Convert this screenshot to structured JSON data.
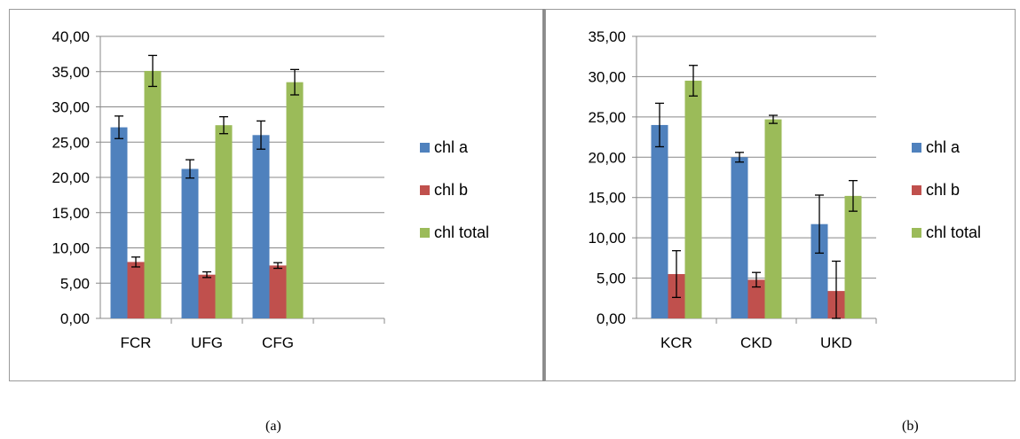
{
  "colors": {
    "chl_a": "#4f81bd",
    "chl_b": "#c0504d",
    "chl_total": "#9bbb59",
    "grid": "#888888",
    "axis": "#888888",
    "frame": "#9a9a9a"
  },
  "captions": {
    "a": "(a)",
    "b": "(b)"
  },
  "chart_data": [
    {
      "type": "bar",
      "panel": "a",
      "categories": [
        "FCR",
        "UFG",
        "CFG",
        ""
      ],
      "series": [
        {
          "name": "chl a",
          "values": [
            27.1,
            21.2,
            26.0,
            null
          ],
          "errors": [
            1.6,
            1.3,
            2.0,
            null
          ]
        },
        {
          "name": "chl b",
          "values": [
            8.0,
            6.2,
            7.5,
            null
          ],
          "errors": [
            0.7,
            0.4,
            0.4,
            null
          ]
        },
        {
          "name": "chl total",
          "values": [
            35.1,
            27.4,
            33.5,
            null
          ],
          "errors": [
            2.2,
            1.2,
            1.8,
            null
          ]
        }
      ],
      "ylim": [
        0,
        40
      ],
      "yticks": [
        "0,00",
        "5,00",
        "10,00",
        "15,00",
        "20,00",
        "25,00",
        "30,00",
        "35,00",
        "40,00"
      ],
      "grid": true,
      "legend": "right",
      "title": "",
      "xlabel": "",
      "ylabel": ""
    },
    {
      "type": "bar",
      "panel": "b",
      "categories": [
        "KCR",
        "CKD",
        "UKD"
      ],
      "series": [
        {
          "name": "chl a",
          "values": [
            24.0,
            20.0,
            11.7
          ],
          "errors": [
            2.7,
            0.6,
            3.6
          ]
        },
        {
          "name": "chl b",
          "values": [
            5.5,
            4.8,
            3.4
          ],
          "errors": [
            2.9,
            0.9,
            3.7
          ]
        },
        {
          "name": "chl total",
          "values": [
            29.5,
            24.7,
            15.2
          ],
          "errors": [
            1.9,
            0.5,
            1.9
          ]
        }
      ],
      "ylim": [
        0,
        35
      ],
      "yticks": [
        "0,00",
        "5,00",
        "10,00",
        "15,00",
        "20,00",
        "25,00",
        "30,00",
        "35,00"
      ],
      "grid": true,
      "legend": "right",
      "title": "",
      "xlabel": "",
      "ylabel": ""
    }
  ]
}
